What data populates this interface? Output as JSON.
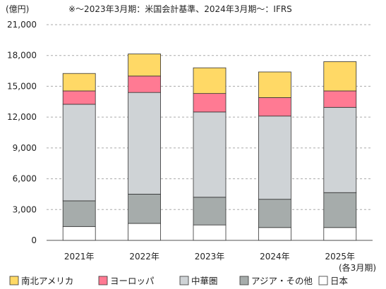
{
  "chart_data": {
    "type": "bar",
    "stacked": true,
    "title": "",
    "ylabel": "(億円)",
    "xlabel": "",
    "x_unit_note": "(各3月期)",
    "note": "※～2023年3月期：米国会計基準、2024年3月期～：IFRS",
    "ylim": [
      0,
      21000
    ],
    "yticks": [
      0,
      3000,
      6000,
      9000,
      12000,
      15000,
      18000,
      21000
    ],
    "ytick_labels": [
      "0",
      "3,000",
      "6,000",
      "9,000",
      "12,000",
      "15,000",
      "18,000",
      "21,000"
    ],
    "categories": [
      "2021年",
      "2022年",
      "2023年",
      "2024年",
      "2025年"
    ],
    "grid": true,
    "legend_position": "bottom",
    "series": [
      {
        "name": "日本",
        "color": "#ffffff",
        "values": [
          1350,
          1650,
          1500,
          1250,
          1250
        ]
      },
      {
        "name": "アジア・その他",
        "color": "#a6acab",
        "values": [
          2500,
          2850,
          2700,
          2750,
          3400
        ]
      },
      {
        "name": "中華圏",
        "color": "#cfd3d6",
        "values": [
          9400,
          9900,
          8300,
          8100,
          8300
        ]
      },
      {
        "name": "ヨーロッパ",
        "color": "#ff7a93",
        "values": [
          1300,
          1600,
          1800,
          1800,
          1600
        ]
      },
      {
        "name": "南北アメリカ",
        "color": "#ffd966",
        "values": [
          1700,
          2150,
          2500,
          2500,
          2850
        ]
      }
    ],
    "legend_order": [
      "南北アメリカ",
      "ヨーロッパ",
      "中華圏",
      "アジア・その他",
      "日本"
    ]
  }
}
